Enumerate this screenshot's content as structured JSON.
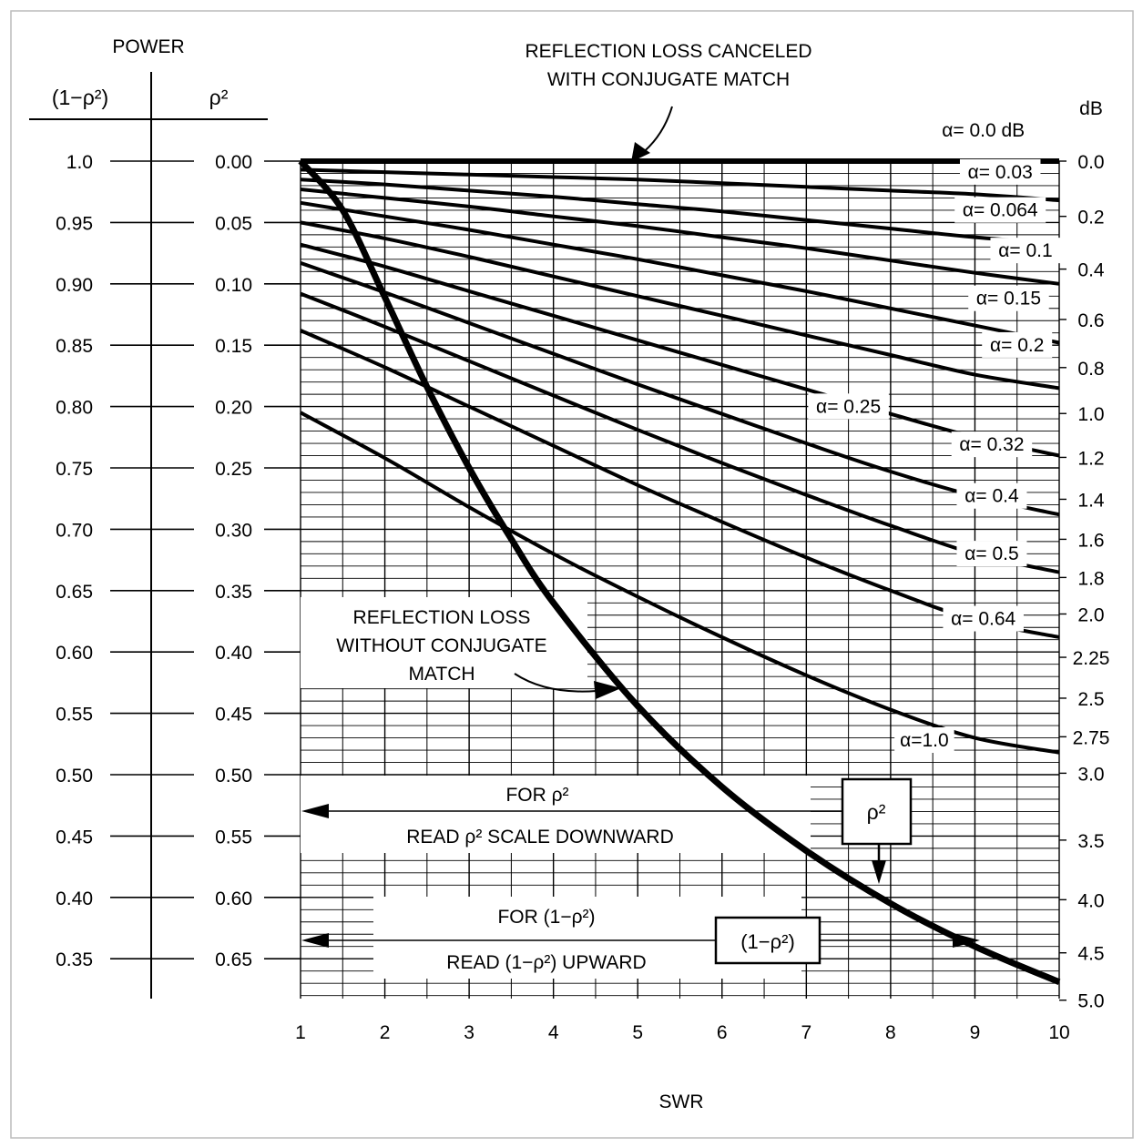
{
  "chart_data": {
    "type": "line",
    "title": "",
    "xlabel": "SWR",
    "xlim": [
      1,
      10
    ],
    "x_ticks": [
      "1",
      "2",
      "3",
      "4",
      "5",
      "6",
      "7",
      "8",
      "9",
      "10"
    ],
    "left_axis": {
      "header": "POWER",
      "power_header": "(1−ρ²)",
      "rho_header": "ρ²",
      "power_ticks": [
        "1.0",
        "0.95",
        "0.90",
        "0.85",
        "0.80",
        "0.75",
        "0.70",
        "0.65",
        "0.60",
        "0.55",
        "0.50",
        "0.45",
        "0.40",
        "0.35"
      ],
      "rho_ticks": [
        "0.00",
        "0.05",
        "0.10",
        "0.15",
        "0.20",
        "0.25",
        "0.30",
        "0.35",
        "0.40",
        "0.45",
        "0.50",
        "0.55",
        "0.60",
        "0.65"
      ]
    },
    "right_axis": {
      "unit": "dB",
      "ticks": [
        {
          "label": "0.0",
          "value": 0.0
        },
        {
          "label": "0.2",
          "value": 0.2
        },
        {
          "label": "0.4",
          "value": 0.4
        },
        {
          "label": "0.6",
          "value": 0.6
        },
        {
          "label": "0.8",
          "value": 0.8
        },
        {
          "label": "1.0",
          "value": 1.0
        },
        {
          "label": "1.2",
          "value": 1.2
        },
        {
          "label": "1.4",
          "value": 1.4
        },
        {
          "label": "1.6",
          "value": 1.6
        },
        {
          "label": "1.8",
          "value": 1.8
        },
        {
          "label": "2.0",
          "value": 2.0
        },
        {
          "label": "2.25",
          "value": 2.25
        },
        {
          "label": "2.5",
          "value": 2.5
        },
        {
          "label": "2.75",
          "value": 2.75
        },
        {
          "label": "3.0",
          "value": 3.0
        },
        {
          "label": "3.5",
          "value": 3.5
        },
        {
          "label": "4.0",
          "value": 4.0
        },
        {
          "label": "4.5",
          "value": 4.5
        },
        {
          "label": "5.0",
          "value": 5.0
        }
      ]
    },
    "y_range_rho2": [
      0,
      0.68
    ],
    "series": [
      {
        "name": "α= 0.0 dB",
        "x": [
          1,
          10
        ],
        "rho2": [
          0.0,
          0.0
        ]
      },
      {
        "name": "α= 0.03",
        "x": [
          1,
          2,
          3,
          4,
          5,
          6,
          7,
          8,
          9,
          10
        ],
        "rho2": [
          0.007,
          0.009,
          0.011,
          0.013,
          0.015,
          0.018,
          0.021,
          0.024,
          0.027,
          0.032
        ]
      },
      {
        "name": "α= 0.064",
        "x": [
          1,
          2,
          3,
          4,
          5,
          6,
          7,
          8,
          9,
          10
        ],
        "rho2": [
          0.015,
          0.019,
          0.024,
          0.029,
          0.035,
          0.041,
          0.048,
          0.055,
          0.062,
          0.067
        ]
      },
      {
        "name": "α= 0.1",
        "x": [
          1,
          2,
          3,
          4,
          5,
          6,
          7,
          8,
          9,
          10
        ],
        "rho2": [
          0.023,
          0.03,
          0.037,
          0.045,
          0.053,
          0.062,
          0.071,
          0.081,
          0.091,
          0.1
        ]
      },
      {
        "name": "α= 0.15",
        "x": [
          1,
          2,
          3,
          4,
          5,
          6,
          7,
          8,
          9,
          10
        ],
        "rho2": [
          0.034,
          0.045,
          0.056,
          0.068,
          0.08,
          0.093,
          0.106,
          0.12,
          0.134,
          0.148
        ]
      },
      {
        "name": "α= 0.2",
        "x": [
          1,
          2,
          3,
          4,
          5,
          6,
          7,
          8,
          9,
          10
        ],
        "rho2": [
          0.05,
          0.063,
          0.078,
          0.094,
          0.11,
          0.126,
          0.142,
          0.158,
          0.174,
          0.185
        ]
      },
      {
        "name": "α= 0.25",
        "x": [
          1,
          2,
          3,
          4,
          5,
          6,
          7,
          8,
          9,
          10
        ],
        "rho2": [
          0.068,
          0.086,
          0.106,
          0.126,
          0.146,
          0.166,
          0.186,
          0.206,
          0.225,
          0.24
        ]
      },
      {
        "name": "α= 0.32",
        "x": [
          1,
          2,
          3,
          4,
          5,
          6,
          7,
          8,
          9,
          10
        ],
        "rho2": [
          0.083,
          0.107,
          0.132,
          0.157,
          0.182,
          0.206,
          0.23,
          0.253,
          0.273,
          0.288
        ]
      },
      {
        "name": "α= 0.4",
        "x": [
          1,
          2,
          3,
          4,
          5,
          6,
          7,
          8,
          9,
          10
        ],
        "rho2": [
          0.108,
          0.135,
          0.163,
          0.191,
          0.219,
          0.246,
          0.272,
          0.297,
          0.32,
          0.335
        ]
      },
      {
        "name": "α= 0.5",
        "x": [
          1,
          2,
          3,
          4,
          5,
          6,
          7,
          8,
          9,
          10
        ],
        "rho2": [
          0.138,
          0.168,
          0.2,
          0.232,
          0.264,
          0.294,
          0.323,
          0.35,
          0.374,
          0.388
        ]
      },
      {
        "name": "α= 0.64",
        "x": [
          1,
          2,
          3,
          4,
          5,
          6,
          7,
          8,
          9,
          10
        ],
        "rho2": [
          0.205,
          0.242,
          0.282,
          0.32,
          0.355,
          0.388,
          0.419,
          0.447,
          0.47,
          0.482
        ]
      },
      {
        "name": "α=1.0",
        "x": [
          1,
          10
        ],
        "rho2": [
          0.0,
          0.0
        ]
      }
    ],
    "conjugate_curve": {
      "name": "ρ²",
      "x": [
        1,
        1.5,
        2,
        2.5,
        3,
        3.5,
        4,
        5,
        6,
        7,
        8,
        9,
        10
      ],
      "rho2": [
        0.0,
        0.04,
        0.111,
        0.184,
        0.25,
        0.308,
        0.36,
        0.444,
        0.51,
        0.562,
        0.605,
        0.64,
        0.669
      ]
    },
    "curve_labels": [
      {
        "text": "α= 0.0 dB",
        "x": 9.1,
        "rho2": -0.02
      },
      {
        "text": "α= 0.03",
        "x": 9.3,
        "rho2": 0.014
      },
      {
        "text": "α= 0.064",
        "x": 9.3,
        "rho2": 0.045
      },
      {
        "text": "α= 0.1",
        "x": 9.6,
        "rho2": 0.078
      },
      {
        "text": "α= 0.15",
        "x": 9.4,
        "rho2": 0.117
      },
      {
        "text": "α= 0.2",
        "x": 9.5,
        "rho2": 0.155
      },
      {
        "text": "α= 0.25",
        "x": 7.5,
        "rho2": 0.205
      },
      {
        "text": "α= 0.32",
        "x": 9.2,
        "rho2": 0.236
      },
      {
        "text": "α= 0.4",
        "x": 9.2,
        "rho2": 0.278
      },
      {
        "text": "α= 0.5",
        "x": 9.2,
        "rho2": 0.325
      },
      {
        "text": "α= 0.64",
        "x": 9.1,
        "rho2": 0.378
      },
      {
        "text": "α=1.0",
        "x": 8.4,
        "rho2": 0.477
      }
    ],
    "annotations": {
      "canceled_line1": "REFLECTION LOSS CANCELED",
      "canceled_line2": "WITH CONJUGATE MATCH",
      "without_line1": "REFLECTION LOSS",
      "without_line2": "WITHOUT CONJUGATE",
      "without_line3": "MATCH",
      "for_rho": "FOR ρ²",
      "read_rho": "READ ρ² SCALE DOWNWARD",
      "for_one_minus": "FOR (1−ρ²)",
      "read_one_minus": "READ (1−ρ²) UPWARD",
      "rho_box": "ρ²",
      "one_minus_box": "(1−ρ²)"
    },
    "grid": true
  }
}
